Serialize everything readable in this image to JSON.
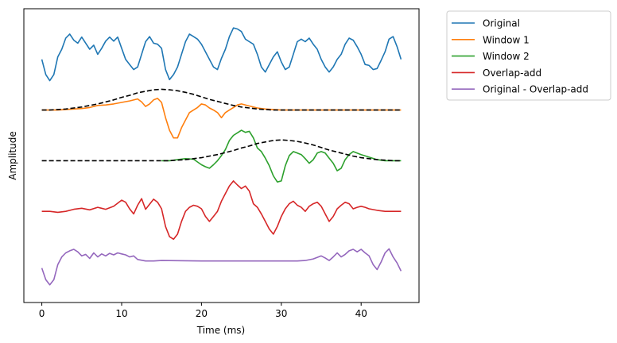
{
  "chart_data": {
    "type": "line",
    "title": "",
    "xlabel": "Time (ms)",
    "ylabel": "Amplitude",
    "xlim": [
      -2.25,
      47.25
    ],
    "ylim": [
      -4.8,
      1.0
    ],
    "x_ticks": [
      0,
      10,
      20,
      30,
      40
    ],
    "y_ticks_visible": false,
    "grid": false,
    "legend_placement": "outside-top-right",
    "window_envelope_style": "black-dashed",
    "series": [
      {
        "name": "Original",
        "color": "#1f77b4",
        "x": [
          0,
          0.5,
          1,
          1.5,
          2,
          2.5,
          3,
          3.5,
          4,
          4.5,
          5,
          5.5,
          6,
          6.5,
          7,
          7.5,
          8,
          8.5,
          9,
          9.5,
          10,
          10.5,
          11,
          11.5,
          12,
          12.5,
          13,
          13.5,
          14,
          14.5,
          15,
          15.5,
          16,
          16.5,
          17,
          17.5,
          18,
          18.5,
          19,
          19.5,
          20,
          20.5,
          21,
          21.5,
          22,
          22.5,
          23,
          23.5,
          24,
          24.5,
          25,
          25.5,
          26,
          26.5,
          27,
          27.5,
          28,
          28.5,
          29,
          29.5,
          30,
          30.5,
          31,
          31.5,
          32,
          32.5,
          33,
          33.5,
          34,
          34.5,
          35,
          35.5,
          36,
          36.5,
          37,
          37.5,
          38,
          38.5,
          39,
          39.5,
          40,
          40.5,
          41,
          41.5,
          42,
          42.5,
          43,
          43.5,
          44,
          44.5,
          45
        ],
        "y": [
          0.0,
          -0.3,
          -0.42,
          -0.3,
          0.05,
          0.2,
          0.42,
          0.5,
          0.38,
          0.32,
          0.44,
          0.32,
          0.2,
          0.28,
          0.1,
          0.22,
          0.36,
          0.44,
          0.36,
          0.44,
          0.22,
          0.0,
          -0.1,
          -0.2,
          -0.15,
          0.1,
          0.35,
          0.45,
          0.32,
          0.3,
          0.22,
          -0.2,
          -0.4,
          -0.3,
          -0.15,
          0.1,
          0.35,
          0.5,
          0.45,
          0.4,
          0.3,
          0.15,
          0.0,
          -0.15,
          -0.2,
          0.02,
          0.2,
          0.45,
          0.62,
          0.6,
          0.55,
          0.4,
          0.35,
          0.3,
          0.1,
          -0.15,
          -0.25,
          -0.1,
          0.05,
          0.15,
          -0.05,
          -0.2,
          -0.15,
          0.1,
          0.35,
          0.4,
          0.35,
          0.42,
          0.3,
          0.2,
          0.0,
          -0.15,
          -0.25,
          -0.15,
          0.0,
          0.1,
          0.3,
          0.42,
          0.38,
          0.25,
          0.1,
          -0.1,
          -0.12,
          -0.2,
          -0.18,
          -0.02,
          0.15,
          0.4,
          0.45,
          0.25,
          0.0
        ]
      },
      {
        "name": "Window 1",
        "color": "#ff7f0e",
        "x": [
          0,
          1,
          2,
          3,
          4,
          5,
          6,
          7,
          8,
          9,
          10,
          11,
          12,
          12.5,
          13,
          13.5,
          14,
          14.5,
          15,
          15.5,
          16,
          16.5,
          17,
          17.5,
          18,
          18.5,
          19,
          19.5,
          20,
          20.5,
          21,
          21.5,
          22,
          22.5,
          23,
          23.5,
          24,
          24.5,
          25,
          26,
          27,
          28,
          29,
          30,
          31,
          32,
          33,
          34,
          35,
          36,
          37,
          38,
          39,
          40,
          41,
          42,
          43,
          44,
          45
        ],
        "y": [
          -1.0,
          -1.0,
          -1.0,
          -0.99,
          -0.98,
          -0.97,
          -0.95,
          -0.91,
          -0.9,
          -0.88,
          -0.85,
          -0.82,
          -0.78,
          -0.84,
          -0.93,
          -0.88,
          -0.8,
          -0.77,
          -0.85,
          -1.15,
          -1.4,
          -1.55,
          -1.55,
          -1.35,
          -1.2,
          -1.05,
          -1.0,
          -0.95,
          -0.88,
          -0.9,
          -0.96,
          -1.0,
          -1.05,
          -1.15,
          -1.05,
          -1.0,
          -0.95,
          -0.9,
          -0.88,
          -0.92,
          -0.96,
          -0.98,
          -0.99,
          -1.0,
          -1.0,
          -1.0,
          -1.0,
          -1.0,
          -1.0,
          -1.0,
          -1.0,
          -1.0,
          -1.0,
          -1.0,
          -1.0,
          -1.0,
          -1.0,
          -1.0,
          -1.0
        ]
      },
      {
        "name": "Window 2",
        "color": "#2ca02c",
        "x": [
          15,
          16,
          17,
          18,
          19,
          20,
          20.5,
          21,
          21.5,
          22,
          22.5,
          23,
          23.5,
          24,
          24.5,
          25,
          25.5,
          26,
          26.5,
          27,
          27.5,
          28,
          28.5,
          29,
          29.5,
          30,
          30.5,
          31,
          31.5,
          32,
          32.5,
          33,
          33.5,
          34,
          34.5,
          35,
          35.5,
          36,
          36.5,
          37,
          37.5,
          38,
          38.5,
          39,
          40,
          41,
          42,
          43,
          44,
          45
        ],
        "y": [
          -2.0,
          -2.0,
          -1.98,
          -1.96,
          -1.97,
          -2.08,
          -2.12,
          -2.15,
          -2.08,
          -2.0,
          -1.9,
          -1.78,
          -1.6,
          -1.5,
          -1.45,
          -1.4,
          -1.44,
          -1.42,
          -1.55,
          -1.75,
          -1.82,
          -1.95,
          -2.1,
          -2.3,
          -2.42,
          -2.4,
          -2.1,
          -1.9,
          -1.82,
          -1.85,
          -1.88,
          -1.96,
          -2.05,
          -1.98,
          -1.85,
          -1.82,
          -1.85,
          -1.95,
          -2.05,
          -2.2,
          -2.15,
          -1.98,
          -1.88,
          -1.82,
          -1.88,
          -1.93,
          -1.98,
          -2.0,
          -2.0,
          -2.0
        ]
      },
      {
        "name": "Overlap-add",
        "color": "#d62728",
        "x": [
          0,
          1,
          2,
          3,
          4,
          5,
          6,
          7,
          8,
          9,
          10,
          10.5,
          11,
          11.5,
          12,
          12.5,
          13,
          13.5,
          14,
          14.5,
          15,
          15.5,
          16,
          16.5,
          17,
          17.5,
          18,
          18.5,
          19,
          19.5,
          20,
          20.5,
          21,
          21.5,
          22,
          22.5,
          23,
          23.5,
          24,
          24.5,
          25,
          25.5,
          26,
          26.5,
          27,
          27.5,
          28,
          28.5,
          29,
          29.5,
          30,
          30.5,
          31,
          31.5,
          32,
          32.5,
          33,
          33.5,
          34,
          34.5,
          35,
          35.5,
          36,
          36.5,
          37,
          37.5,
          38,
          38.5,
          39,
          39.5,
          40,
          40.5,
          41,
          42,
          43,
          44,
          45
        ],
        "y": [
          -3.0,
          -3.0,
          -3.02,
          -3.0,
          -2.96,
          -2.94,
          -2.97,
          -2.92,
          -2.96,
          -2.9,
          -2.78,
          -2.82,
          -2.95,
          -3.05,
          -2.88,
          -2.75,
          -2.96,
          -2.86,
          -2.76,
          -2.82,
          -2.95,
          -3.3,
          -3.5,
          -3.55,
          -3.45,
          -3.2,
          -3.0,
          -2.92,
          -2.88,
          -2.9,
          -2.95,
          -3.1,
          -3.2,
          -3.1,
          -3.0,
          -2.8,
          -2.65,
          -2.5,
          -2.4,
          -2.48,
          -2.55,
          -2.5,
          -2.6,
          -2.85,
          -2.92,
          -3.05,
          -3.2,
          -3.35,
          -3.45,
          -3.3,
          -3.1,
          -2.95,
          -2.85,
          -2.8,
          -2.88,
          -2.92,
          -3.0,
          -2.9,
          -2.85,
          -2.82,
          -2.9,
          -3.05,
          -3.2,
          -3.1,
          -2.95,
          -2.88,
          -2.82,
          -2.85,
          -2.95,
          -2.92,
          -2.9,
          -2.92,
          -2.95,
          -2.98,
          -3.0,
          -3.0,
          -3.0
        ]
      },
      {
        "name": "Original - Overlap-add",
        "color": "#9467bd",
        "x": [
          0,
          0.5,
          1,
          1.5,
          2,
          2.5,
          3,
          3.5,
          4,
          4.5,
          5,
          5.5,
          6,
          6.5,
          7,
          7.5,
          8,
          8.5,
          9,
          9.5,
          10,
          10.5,
          11,
          11.5,
          12,
          13,
          14,
          15,
          20,
          25,
          30,
          32,
          33,
          34,
          35,
          35.5,
          36,
          36.5,
          37,
          37.5,
          38,
          38.5,
          39,
          39.5,
          40,
          40.5,
          41,
          41.5,
          42,
          42.5,
          43,
          43.5,
          44,
          44.5,
          45
        ],
        "y": [
          -4.12,
          -4.35,
          -4.45,
          -4.35,
          -4.05,
          -3.9,
          -3.82,
          -3.78,
          -3.75,
          -3.8,
          -3.88,
          -3.85,
          -3.93,
          -3.82,
          -3.9,
          -3.84,
          -3.88,
          -3.83,
          -3.86,
          -3.82,
          -3.84,
          -3.86,
          -3.9,
          -3.88,
          -3.95,
          -3.98,
          -3.98,
          -3.97,
          -3.98,
          -3.98,
          -3.98,
          -3.98,
          -3.97,
          -3.94,
          -3.88,
          -3.92,
          -3.97,
          -3.9,
          -3.82,
          -3.9,
          -3.85,
          -3.78,
          -3.75,
          -3.8,
          -3.75,
          -3.82,
          -3.88,
          -4.05,
          -4.15,
          -4.0,
          -3.82,
          -3.74,
          -3.9,
          -4.02,
          -4.18
        ]
      },
      {
        "name": "",
        "legend": false,
        "color": "#000000",
        "dashed": true,
        "x": [
          0,
          1,
          2,
          3,
          4,
          5,
          6,
          7,
          8,
          9,
          10,
          11,
          12,
          13,
          14,
          15,
          16,
          17,
          18,
          19,
          20,
          21,
          22,
          23,
          24,
          25,
          26,
          27,
          28,
          29,
          30,
          31,
          32,
          33,
          34,
          35,
          36,
          37,
          38,
          39,
          40,
          41,
          42,
          43,
          44,
          45
        ],
        "y": [
          -1.0,
          -1.0,
          -0.99,
          -0.98,
          -0.96,
          -0.94,
          -0.91,
          -0.88,
          -0.84,
          -0.8,
          -0.75,
          -0.71,
          -0.66,
          -0.63,
          -0.6,
          -0.59,
          -0.6,
          -0.62,
          -0.65,
          -0.69,
          -0.74,
          -0.79,
          -0.83,
          -0.87,
          -0.91,
          -0.94,
          -0.96,
          -0.98,
          -0.99,
          -1.0,
          -1.0,
          -1.0,
          -1.0,
          -1.0,
          -1.0,
          -1.0,
          -1.0,
          -1.0,
          -1.0,
          -1.0,
          -1.0,
          -1.0,
          -1.0,
          -1.0,
          -1.0,
          -1.0
        ]
      },
      {
        "name": "",
        "legend": false,
        "color": "#000000",
        "dashed": true,
        "x": [
          0,
          5,
          10,
          14,
          15,
          16,
          17,
          18,
          19,
          20,
          21,
          22,
          23,
          24,
          25,
          26,
          27,
          28,
          29,
          30,
          31,
          32,
          33,
          34,
          35,
          36,
          37,
          38,
          39,
          40,
          41,
          42,
          43,
          44,
          45
        ],
        "y": [
          -2.0,
          -2.0,
          -2.0,
          -2.0,
          -2.0,
          -2.0,
          -1.99,
          -1.98,
          -1.96,
          -1.94,
          -1.91,
          -1.88,
          -1.84,
          -1.8,
          -1.75,
          -1.71,
          -1.66,
          -1.63,
          -1.6,
          -1.59,
          -1.6,
          -1.62,
          -1.65,
          -1.69,
          -1.74,
          -1.79,
          -1.83,
          -1.87,
          -1.91,
          -1.94,
          -1.96,
          -1.98,
          -1.99,
          -2.0,
          -2.0
        ]
      }
    ]
  }
}
